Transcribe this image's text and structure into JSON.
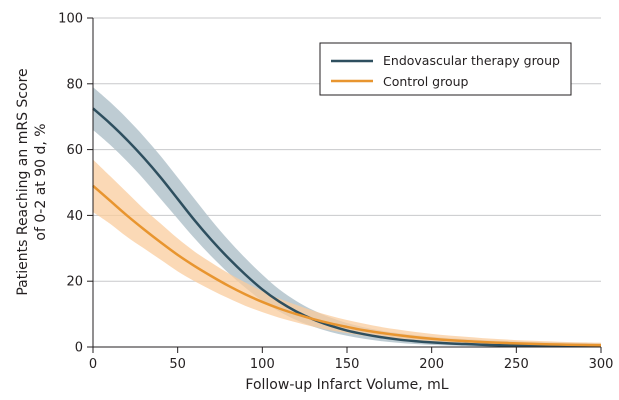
{
  "chart_data": {
    "type": "line",
    "title": "",
    "xlabel": "Follow-up Infarct Volume, mL",
    "ylabel_lines": [
      "Patients Reaching an mRS Score",
      "of 0-2 at 90 d, %"
    ],
    "xlim": [
      0,
      300
    ],
    "ylim": [
      0,
      100
    ],
    "x_ticks": [
      0,
      50,
      100,
      150,
      200,
      250,
      300
    ],
    "y_ticks": [
      0,
      20,
      40,
      60,
      80,
      100
    ],
    "grid": "horizontal",
    "legend_position": "top-right",
    "x": [
      0,
      10,
      20,
      30,
      40,
      50,
      60,
      70,
      80,
      90,
      100,
      110,
      120,
      130,
      140,
      150,
      160,
      170,
      180,
      190,
      200,
      210,
      220,
      230,
      240,
      250,
      260,
      270,
      280,
      290,
      300
    ],
    "series": [
      {
        "name": "Endovascular therapy group",
        "color": "#2e4f5f",
        "band_color": "#b3c3cb",
        "values": [
          72.5,
          68,
          63,
          57.5,
          51.5,
          45,
          38.5,
          32.5,
          27,
          22,
          17.5,
          13.8,
          10.8,
          8.4,
          6.5,
          5,
          3.9,
          3,
          2.3,
          1.8,
          1.4,
          1.1,
          0.9,
          0.7,
          0.55,
          0.45,
          0.4,
          0.35,
          0.3,
          0.28,
          0.25
        ],
        "lower": [
          66,
          61.5,
          56.5,
          51,
          45,
          39,
          33,
          27.5,
          22.5,
          18,
          14,
          10.8,
          8.2,
          6.2,
          4.6,
          3.4,
          2.5,
          1.8,
          1.3,
          0.9,
          0.65,
          0.45,
          0.3,
          0.2,
          0.15,
          0.1,
          0.08,
          0.06,
          0.05,
          0.04,
          0.03
        ],
        "upper": [
          79,
          74.5,
          69.5,
          64,
          58,
          51.5,
          45,
          38.5,
          32.5,
          27,
          22,
          17.5,
          14,
          11.2,
          9,
          7.3,
          6,
          5,
          4.2,
          3.6,
          3.1,
          2.7,
          2.4,
          2.1,
          1.9,
          1.7,
          1.5,
          1.4,
          1.3,
          1.2,
          1.1
        ]
      },
      {
        "name": "Control group",
        "color": "#e8952f",
        "band_color": "#f9cc9e",
        "values": [
          49,
          44.5,
          40,
          35.8,
          31.8,
          28,
          24.6,
          21.5,
          18.6,
          16,
          13.7,
          11.7,
          10,
          8.5,
          7.2,
          6.1,
          5.1,
          4.3,
          3.6,
          3,
          2.5,
          2.1,
          1.8,
          1.5,
          1.3,
          1.1,
          0.95,
          0.8,
          0.7,
          0.6,
          0.55
        ],
        "lower": [
          41,
          37.5,
          33.5,
          30,
          26.5,
          23,
          20,
          17.3,
          14.8,
          12.5,
          10.6,
          8.9,
          7.5,
          6.2,
          5.1,
          4.2,
          3.4,
          2.8,
          2.2,
          1.8,
          1.4,
          1.1,
          0.9,
          0.7,
          0.55,
          0.45,
          0.35,
          0.28,
          0.22,
          0.18,
          0.15
        ],
        "upper": [
          57,
          52,
          47,
          42,
          37.5,
          33,
          29,
          25.6,
          22.4,
          19.6,
          17,
          14.7,
          12.8,
          11,
          9.5,
          8.2,
          7.1,
          6.1,
          5.3,
          4.6,
          4,
          3.5,
          3.1,
          2.7,
          2.4,
          2.1,
          1.9,
          1.7,
          1.5,
          1.4,
          1.3
        ]
      }
    ]
  }
}
